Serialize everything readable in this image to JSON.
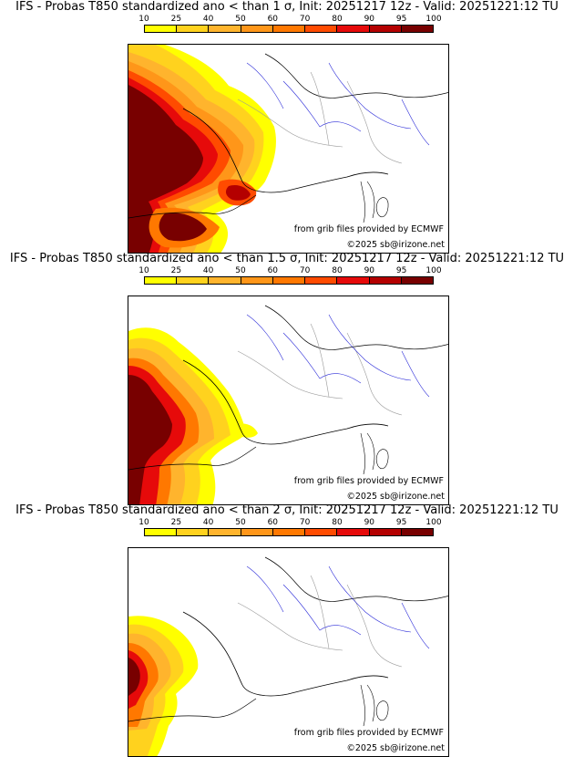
{
  "colorbar": {
    "ticks": [
      "10",
      "25",
      "40",
      "50",
      "60",
      "70",
      "80",
      "90",
      "95",
      "100"
    ],
    "colors": [
      "#ffff00",
      "#ffd21e",
      "#ffb42d",
      "#ff9619",
      "#ff7800",
      "#ff4b00",
      "#e60a0a",
      "#b40000",
      "#780000"
    ]
  },
  "panels": [
    {
      "title": "IFS - Probas T850  standardized ano < than 1 σ, Init: 20251217 12z - Valid: 20251221:12 TU",
      "source_label": "from grib files provided by ECMWF",
      "copyright": "©2025 sb@irizone.net"
    },
    {
      "title": "IFS - Probas T850  standardized ano < than 1.5 σ, Init: 20251217 12z - Valid: 20251221:12 TU",
      "source_label": "from grib files provided by ECMWF",
      "copyright": "©2025 sb@irizone.net"
    },
    {
      "title": "IFS - Probas T850  standardized ano < than 2 σ, Init: 20251217 12z - Valid: 20251221:12 TU",
      "source_label": "from grib files provided by ECMWF",
      "copyright": "©2025 sb@irizone.net"
    }
  ]
}
